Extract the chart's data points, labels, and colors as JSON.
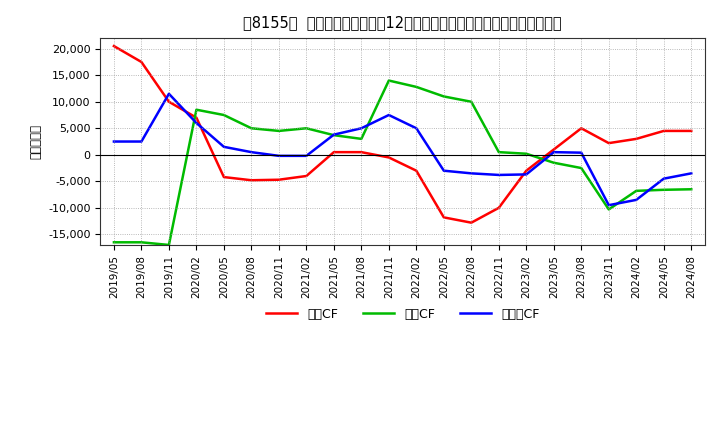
{
  "title": "［8155］  キャッシュフローの12か月移動合計の対前年同期増減額の推移",
  "ylabel": "（百万円）",
  "x_labels": [
    "2019/05",
    "2019/08",
    "2019/11",
    "2020/02",
    "2020/05",
    "2020/08",
    "2020/11",
    "2021/02",
    "2021/05",
    "2021/08",
    "2021/11",
    "2022/02",
    "2022/05",
    "2022/08",
    "2022/11",
    "2023/02",
    "2023/05",
    "2023/08",
    "2023/11",
    "2024/02",
    "2024/05",
    "2024/08"
  ],
  "営業CF": [
    20500,
    17500,
    10000,
    7000,
    -4200,
    -4800,
    -4700,
    -4000,
    500,
    500,
    -500,
    -3000,
    -11800,
    -12800,
    -10000,
    -3000,
    1000,
    5000,
    2200,
    3000,
    4500,
    4500
  ],
  "投資CF": [
    -16500,
    -16500,
    -17000,
    8500,
    7500,
    5000,
    4500,
    5000,
    3700,
    3000,
    14000,
    12800,
    11000,
    10000,
    500,
    200,
    -1500,
    -2500,
    -10300,
    -6800,
    -6600,
    -6500
  ],
  "フリーCF": [
    2500,
    2500,
    11500,
    6000,
    1500,
    500,
    -200,
    -200,
    3800,
    5000,
    7500,
    5000,
    -3000,
    -3500,
    -3800,
    -3700,
    500,
    400,
    -9500,
    -8500,
    -4500,
    -3500
  ],
  "legend_labels": [
    "営業CF",
    "投資CF",
    "フリーCF"
  ],
  "legend_colors": [
    "#ff0000",
    "#00bb00",
    "#0000ff"
  ],
  "ylim": [
    -17000,
    22000
  ],
  "yticks": [
    -15000,
    -10000,
    -5000,
    0,
    5000,
    10000,
    15000,
    20000
  ],
  "bg_color": "#ffffff",
  "grid_color": "#999999",
  "title_fontsize": 10.5,
  "line_width": 1.8
}
